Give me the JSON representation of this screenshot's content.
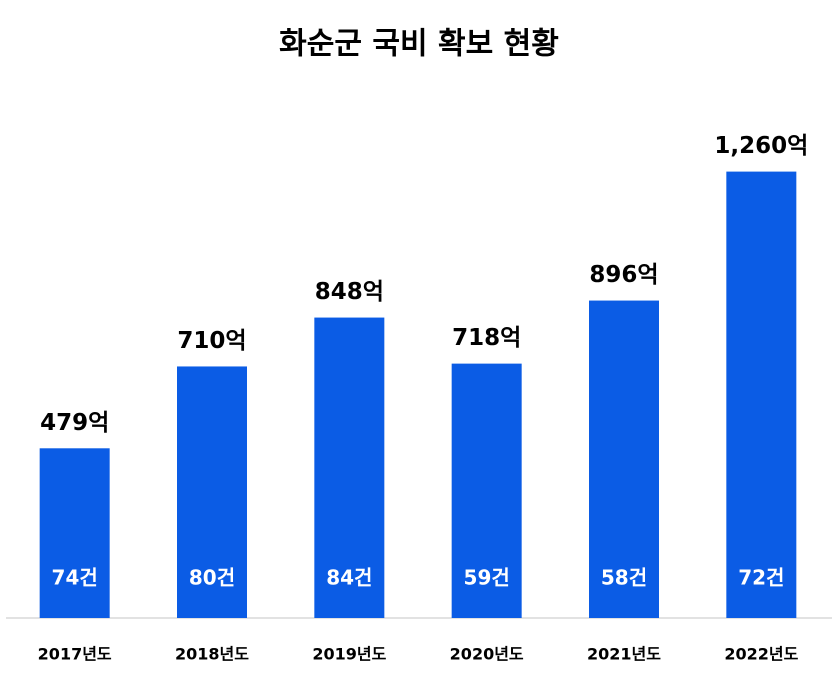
{
  "chart_data": {
    "type": "bar",
    "title": "화순군 국비 확보 현황",
    "categories": [
      "2017년도",
      "2018년도",
      "2019년도",
      "2020년도",
      "2021년도",
      "2022년도"
    ],
    "values": [
      479,
      710,
      848,
      718,
      896,
      1260
    ],
    "value_labels": [
      "479억",
      "710억",
      "848억",
      "718억",
      "896억",
      "1,260억"
    ],
    "counts": [
      74,
      80,
      84,
      59,
      58,
      72
    ],
    "count_labels": [
      "74건",
      "80건",
      "84건",
      "59건",
      "58건",
      "72건"
    ],
    "color": "#0b5ce5",
    "ylim": [
      0,
      1400
    ]
  }
}
